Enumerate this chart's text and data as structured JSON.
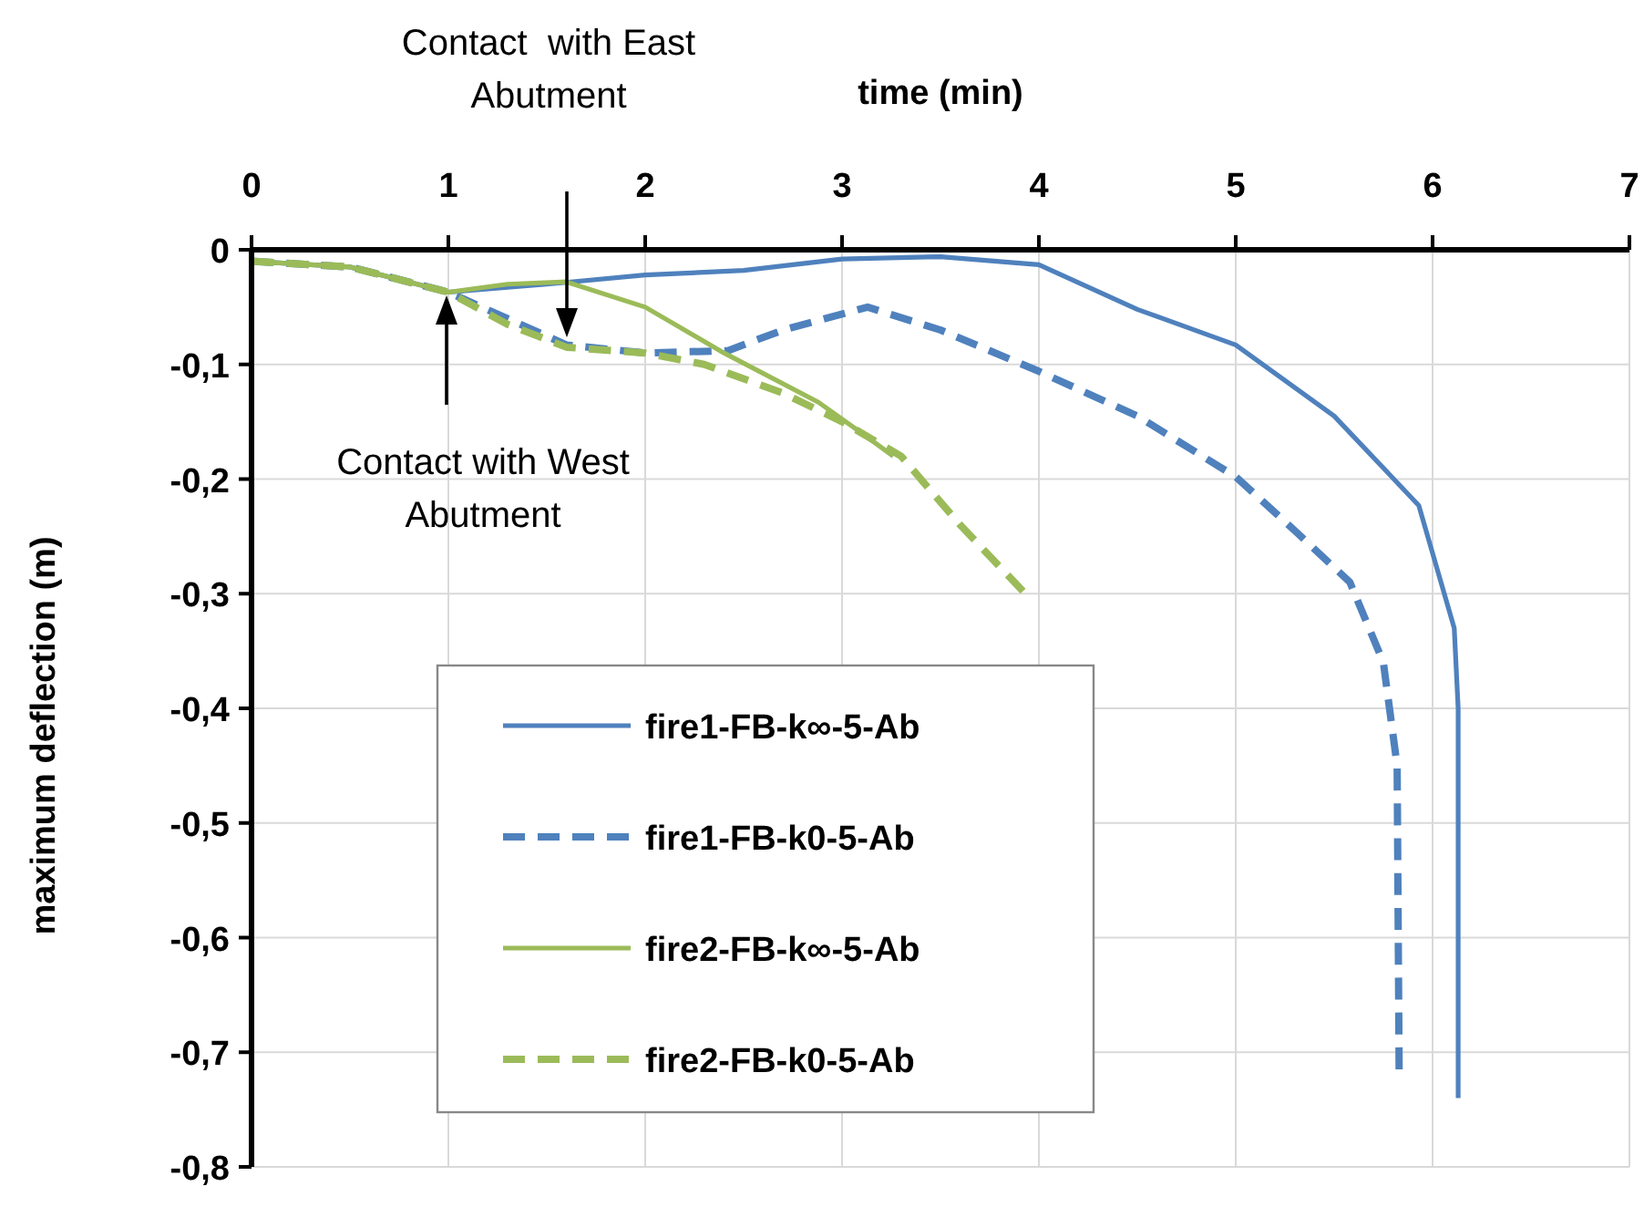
{
  "chart_data": {
    "type": "line",
    "xlabel": "time (min)",
    "ylabel": "maximum deflection (m)",
    "xlim": [
      0,
      7
    ],
    "xticks": [
      0,
      1,
      2,
      3,
      4,
      5,
      6,
      7
    ],
    "ylim": [
      -0.8,
      0
    ],
    "yticks": [
      0,
      {
        "value": -0.1,
        "label": "-0,1"
      },
      {
        "value": -0.2,
        "label": "-0,2"
      },
      {
        "value": -0.3,
        "label": "-0,3"
      },
      {
        "value": -0.4,
        "label": "-0,4"
      },
      {
        "value": -0.5,
        "label": "-0,5"
      },
      {
        "value": -0.6,
        "label": "-0,6"
      },
      {
        "value": -0.7,
        "label": "-0,7"
      },
      {
        "value": -0.8,
        "label": "-0,8"
      }
    ],
    "grid": true,
    "legend": "bottom left",
    "marker": "none",
    "series": [
      {
        "name": "fire1-FB-k∞-5-Ab",
        "color": "#4f81bd",
        "line_style": "solid",
        "x": [
          0,
          0.5,
          1,
          1.5,
          2,
          2.5,
          3,
          3.5,
          4,
          4.5,
          5,
          5.5,
          5.93,
          6.11,
          6.13,
          6.13
        ],
        "values": [
          -0.01,
          -0.015,
          -0.037,
          -0.03,
          -0.022,
          -0.018,
          -0.008,
          -0.006,
          -0.013,
          -0.052,
          -0.083,
          -0.145,
          -0.223,
          -0.33,
          -0.4,
          -0.74
        ]
      },
      {
        "name": "fire1-FB-k0-5-Ab",
        "color": "#4f81bd",
        "line_style": "dashed",
        "x": [
          0,
          0.5,
          1,
          1.3,
          1.6,
          2,
          2.42,
          2.7,
          3.13,
          3.5,
          4,
          4.5,
          5,
          5.3,
          5.58,
          5.75,
          5.82,
          5.83
        ],
        "values": [
          -0.01,
          -0.015,
          -0.037,
          -0.06,
          -0.083,
          -0.09,
          -0.088,
          -0.07,
          -0.05,
          -0.07,
          -0.106,
          -0.145,
          -0.198,
          -0.245,
          -0.29,
          -0.36,
          -0.45,
          -0.715
        ]
      },
      {
        "name": "fire2-FB-k∞-5-Ab",
        "color": "#9bbb59",
        "line_style": "solid",
        "x": [
          0,
          0.5,
          1,
          1.3,
          1.6,
          2,
          2.4,
          2.88,
          3.1,
          3.26
        ],
        "values": [
          -0.01,
          -0.015,
          -0.037,
          -0.03,
          -0.028,
          -0.05,
          -0.09,
          -0.133,
          -0.16,
          -0.18
        ]
      },
      {
        "name": "fire2-FB-k0-5-Ab",
        "color": "#9bbb59",
        "line_style": "dashed",
        "x": [
          0,
          0.5,
          1,
          1.3,
          1.6,
          2,
          2.3,
          2.7,
          3,
          3.3,
          3.6,
          3.92
        ],
        "values": [
          -0.01,
          -0.015,
          -0.037,
          -0.065,
          -0.085,
          -0.09,
          -0.1,
          -0.125,
          -0.15,
          -0.18,
          -0.24,
          -0.298
        ]
      }
    ],
    "annotations": [
      "Contact  with East Abutment",
      "Contact with West Abutment"
    ]
  }
}
